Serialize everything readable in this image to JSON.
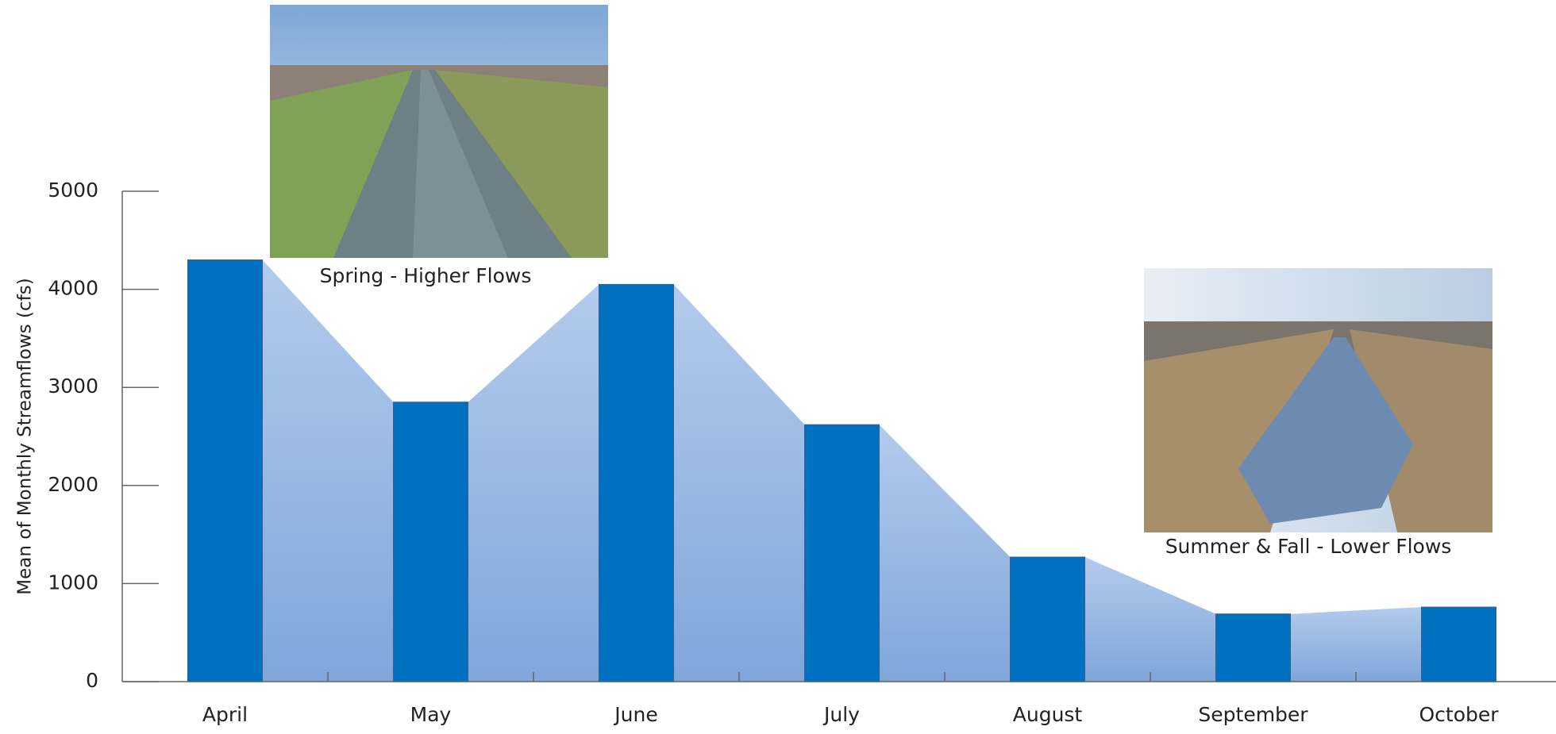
{
  "chart_data": {
    "type": "bar",
    "y_label": "Mean of Monthly Streamflows (cfs)",
    "categories": [
      "April",
      "May",
      "June",
      "July",
      "August",
      "September",
      "October"
    ],
    "values": [
      4300,
      2850,
      4050,
      2620,
      1270,
      690,
      760
    ],
    "color": "#0070c0",
    "area_colors": [
      "#b3cbec",
      "#7fa6da"
    ],
    "ylim": [
      0,
      5000
    ],
    "yticks": [
      0,
      1000,
      2000,
      3000,
      4000,
      5000
    ],
    "annotations": [
      "Spring - Higher Flows",
      "Summer & Fall - Lower Flows"
    ]
  }
}
